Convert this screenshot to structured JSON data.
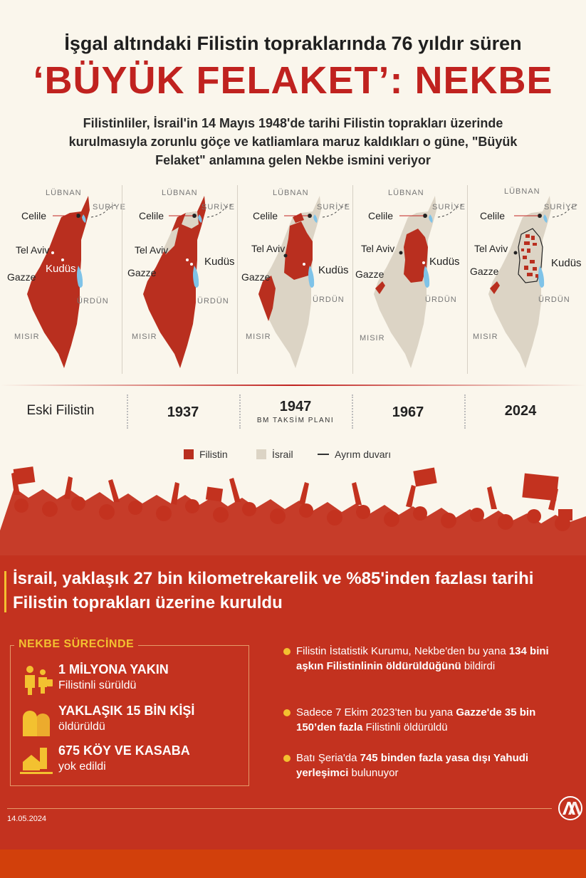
{
  "header": {
    "subtitle": "İşgal altındaki Filistin topraklarında 76 yıldır süren",
    "title": "‘BÜYÜK FELAKET’: NEKBE",
    "intro": "Filistinliler, İsrail'in 14 Mayıs 1948'de tarihi Filistin toprakları üzerinde kurulmasıyla zorunlu göçe ve katliamlara maruz kaldıkları o güne, \"Büyük Felaket\" anlamına gelen Nekbe ismini veriyor"
  },
  "map_labels": {
    "lebanon": "LÜBNAN",
    "syria": "SURİYE",
    "jordan": "ÜRDÜN",
    "egypt": "MISIR",
    "galilee": "Celile",
    "tel_aviv": "Tel Aviv",
    "gaza": "Gazze",
    "jerusalem": "Kudüs"
  },
  "timeline": [
    {
      "year": "Eski Filistin",
      "sub": ""
    },
    {
      "year": "1937",
      "sub": ""
    },
    {
      "year": "1947",
      "sub": "BM TAKSİM PLANI"
    },
    {
      "year": "1967",
      "sub": ""
    },
    {
      "year": "2024",
      "sub": ""
    }
  ],
  "legend": {
    "palestine": "Filistin",
    "israel": "İsrail",
    "wall": "Ayrım duvarı"
  },
  "colors": {
    "palestine": "#b92f1f",
    "israel": "#dcd4c5",
    "accent": "#c0221f",
    "yellow": "#f3c130",
    "bottom_bg": "#c3321f",
    "water": "#7fc3e8"
  },
  "headline": "İsrail, yaklaşık 27 bin kilometrekarelik ve %85'inden fazlası tarihi Filistin toprakları üzerine kuruldu",
  "nekbe": {
    "title": "NEKBE SÜRECİNDE",
    "stats": [
      {
        "big": "1 MİLYONA YAKIN",
        "small": "Filistinli sürüldü",
        "icon": "refugees-icon"
      },
      {
        "big": "YAKLAŞIK 15 BİN KİŞİ",
        "small": "öldürüldü",
        "icon": "gravestones-icon"
      },
      {
        "big": "675 KÖY VE KASABA",
        "small": "yok edildi",
        "icon": "village-icon"
      }
    ]
  },
  "bullets": [
    {
      "pre": "Filistin İstatistik Kurumu, Nekbe'den bu yana ",
      "bold": "134 bini aşkın Filistinlinin öldürüldüğünü",
      "post": " bildirdi"
    },
    {
      "pre": "Sadece 7 Ekim 2023’ten bu yana ",
      "bold": "Gazze'de 35 bin 150’den fazla",
      "post": " Filistinli öldürüldü"
    },
    {
      "pre": "Batı Şeria'da ",
      "bold": "745 binden fazla yasa dışı Yahudi yerleşimci",
      "post": " bulunuyor"
    }
  ],
  "footer": {
    "date": "14.05.2024",
    "logo": "AA"
  }
}
